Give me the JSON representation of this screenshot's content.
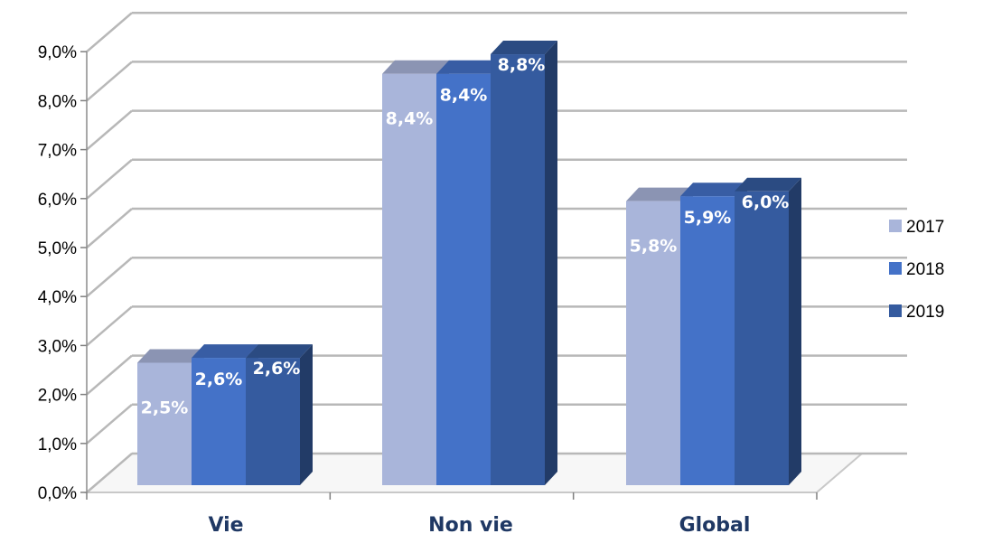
{
  "chart_data": {
    "type": "bar",
    "title": "",
    "xlabel": "",
    "ylabel": "",
    "categories": [
      "Vie",
      "Non  vie",
      "Global"
    ],
    "series": [
      {
        "name": "2017",
        "values": [
          2.5,
          8.4,
          5.8
        ],
        "labels": [
          "2,5%",
          "8,4%",
          "5,8%"
        ]
      },
      {
        "name": "2018",
        "values": [
          2.6,
          8.4,
          5.9
        ],
        "labels": [
          "2,6%",
          "8,4%",
          "5,9%"
        ]
      },
      {
        "name": "2019",
        "values": [
          2.6,
          8.8,
          6.0
        ],
        "labels": [
          "2,6%",
          "8,8%",
          "6,0%"
        ]
      }
    ],
    "ylim": [
      0,
      9
    ],
    "yticks": [
      0,
      1,
      2,
      3,
      4,
      5,
      6,
      7,
      8,
      9
    ],
    "ytick_labels": [
      "0,0%",
      "1,0%",
      "2,0%",
      "3,0%",
      "4,0%",
      "5,0%",
      "6,0%",
      "7,0%",
      "8,0%",
      "9,0%"
    ],
    "grid": true,
    "legend_position": "right",
    "three_d": true
  },
  "colors": {
    "s2017": "#a9b5da",
    "s2018": "#4472c8",
    "s2019": "#355b9f",
    "category_text": "#1f3864",
    "grid": "#b8b8b8"
  }
}
